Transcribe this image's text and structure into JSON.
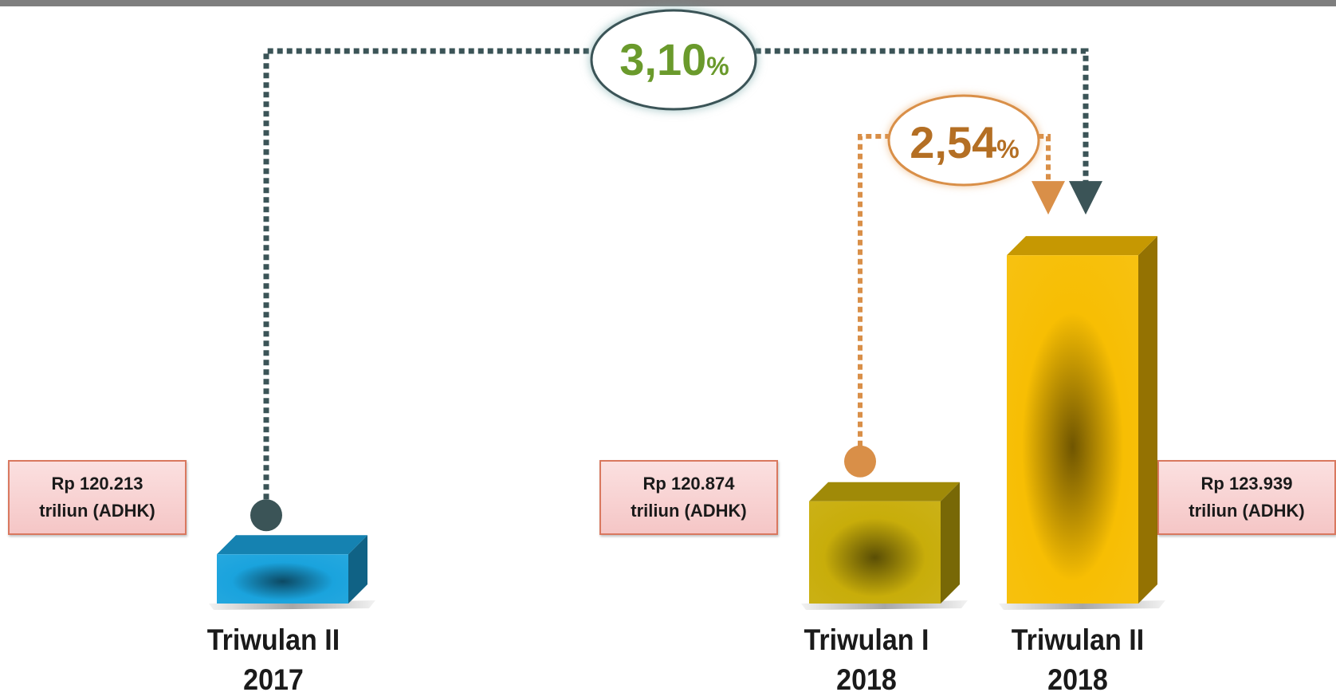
{
  "chart_data": {
    "type": "bar",
    "categories": [
      {
        "line1": "Triwulan II",
        "line2": "2017"
      },
      {
        "line1": "Triwulan I",
        "line2": "2018"
      },
      {
        "line1": "Triwulan II",
        "line2": "2018"
      }
    ],
    "values": [
      120213,
      120874,
      123939
    ],
    "value_labels": [
      {
        "line1": "Rp 120.213",
        "line2": "triliun (ADHK)"
      },
      {
        "line1": "Rp 120.874",
        "line2": "triliun (ADHK)"
      },
      {
        "line1": "Rp 123.939",
        "line2": "triliun (ADHK)"
      }
    ],
    "bar_colors": [
      "#1aa3dd",
      "#c8ad0a",
      "#f7be03"
    ],
    "annotations": [
      {
        "from": 0,
        "to": 2,
        "value": "3,10",
        "unit": "%",
        "color": "#6a9a2c",
        "line_color": "#3b5457"
      },
      {
        "from": 1,
        "to": 2,
        "value": "2,54",
        "unit": "%",
        "color": "#b46f24",
        "line_color": "#d98f48"
      }
    ],
    "title": "",
    "xlabel": "",
    "ylabel": ""
  }
}
